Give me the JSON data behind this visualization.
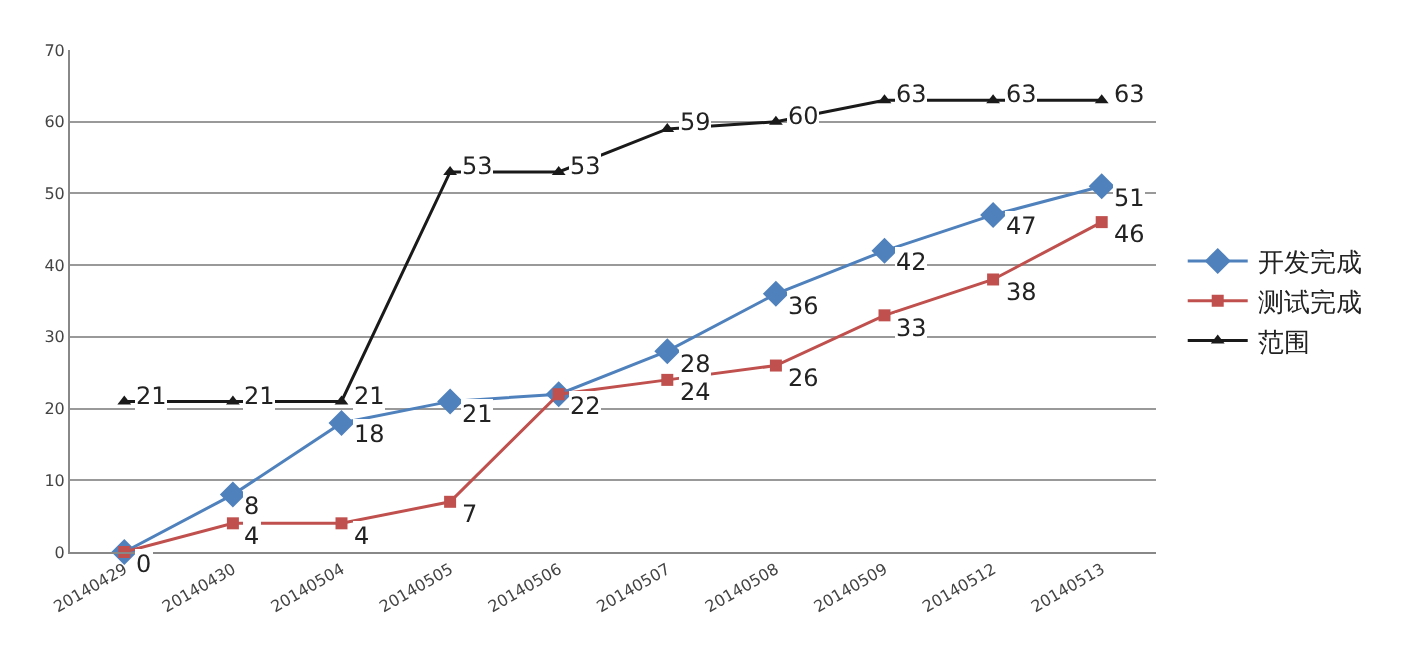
{
  "chart_data": {
    "type": "line",
    "categories": [
      "20140429",
      "20140430",
      "20140504",
      "20140505",
      "20140506",
      "20140507",
      "20140508",
      "20140509",
      "20140512",
      "20140513"
    ],
    "series": [
      {
        "name": "开发完成",
        "color": "#4f81bd",
        "marker": "diamond",
        "values": [
          0,
          8,
          18,
          21,
          22,
          28,
          36,
          42,
          47,
          51
        ],
        "value_labels": [
          null,
          "8",
          "18",
          "21",
          null,
          "28",
          "36",
          "42",
          "47",
          "51"
        ]
      },
      {
        "name": "测试完成",
        "color": "#c0504d",
        "marker": "square",
        "values": [
          0,
          4,
          4,
          7,
          22,
          24,
          26,
          33,
          38,
          46
        ],
        "value_labels": [
          "0",
          "4",
          "4",
          "7",
          "22",
          "24",
          "26",
          "33",
          "38",
          "46"
        ]
      },
      {
        "name": "范围",
        "color": "#1a1a1a",
        "marker": "triangle",
        "values": [
          21,
          21,
          21,
          53,
          53,
          59,
          60,
          63,
          63,
          63
        ],
        "value_labels": [
          "21",
          "21",
          "21",
          "53",
          "53",
          "59",
          "60",
          "63",
          "63",
          "63"
        ]
      }
    ],
    "ylim": [
      0,
      70
    ],
    "yticks": [
      0,
      10,
      20,
      30,
      40,
      50,
      60,
      70
    ],
    "grid": "y",
    "legend": "right"
  }
}
